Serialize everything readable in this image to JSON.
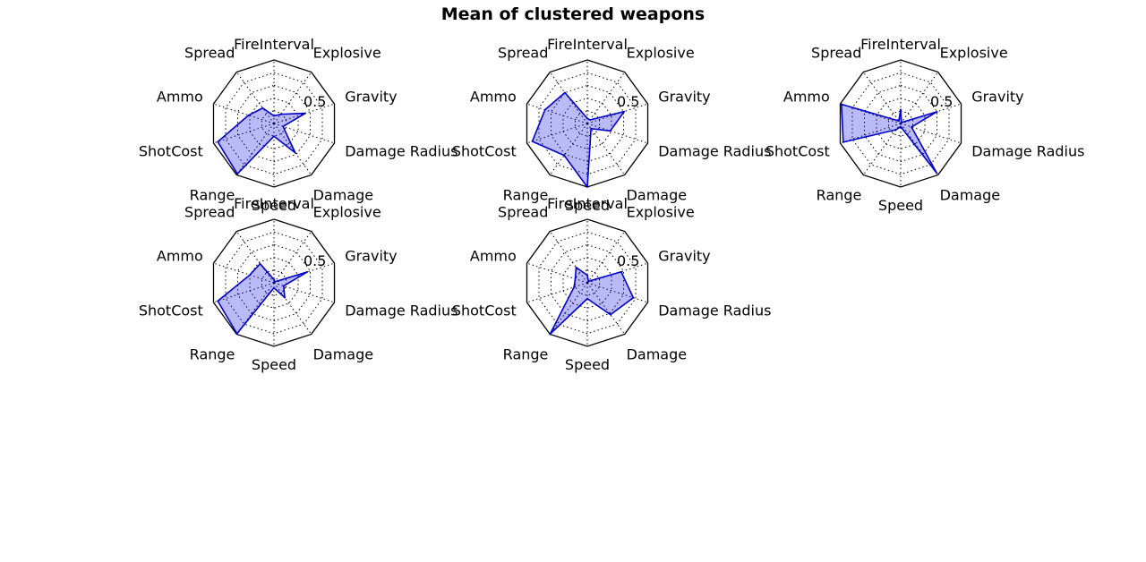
{
  "figure": {
    "title": "Mean of clustered weapons"
  },
  "chart_data": [
    {
      "type": "radar",
      "axes": [
        "FireInterval",
        "Explosive",
        "Gravity",
        "Damage Radius",
        "Damage",
        "Speed",
        "Range",
        "ShotCost",
        "Ammo",
        "Spread"
      ],
      "rtick_label": "0.5",
      "rlim": [
        0,
        1
      ],
      "values": [
        0.12,
        0.18,
        0.52,
        0.15,
        0.57,
        0.2,
        0.98,
        0.93,
        0.42,
        0.3
      ]
    },
    {
      "type": "radar",
      "axes": [
        "FireInterval",
        "Explosive",
        "Gravity",
        "Damage Radius",
        "Damage",
        "Speed",
        "Range",
        "ShotCost",
        "Ammo",
        "Spread"
      ],
      "rtick_label": "0.5",
      "rlim": [
        0,
        1
      ],
      "values": [
        0.08,
        0.07,
        0.61,
        0.38,
        0.1,
        1.0,
        0.62,
        0.91,
        0.7,
        0.6
      ]
    },
    {
      "type": "radar",
      "axes": [
        "FireInterval",
        "Explosive",
        "Gravity",
        "Damage Radius",
        "Damage",
        "Speed",
        "Range",
        "ShotCost",
        "Ammo",
        "Spread"
      ],
      "rtick_label": "0.5",
      "rlim": [
        0,
        1
      ],
      "values": [
        0.22,
        0.02,
        0.6,
        0.18,
        0.97,
        0.05,
        0.12,
        0.95,
        0.98,
        0.05
      ]
    },
    {
      "type": "radar",
      "axes": [
        "FireInterval",
        "Explosive",
        "Gravity",
        "Damage Radius",
        "Damage",
        "Speed",
        "Range",
        "ShotCost",
        "Ammo",
        "Spread"
      ],
      "rtick_label": "0.5",
      "rlim": [
        0,
        1
      ],
      "values": [
        0.05,
        0.02,
        0.55,
        0.16,
        0.29,
        0.08,
        0.99,
        0.93,
        0.4,
        0.37
      ]
    },
    {
      "type": "radar",
      "axes": [
        "FireInterval",
        "Explosive",
        "Gravity",
        "Damage Radius",
        "Damage",
        "Speed",
        "Range",
        "ShotCost",
        "Ammo",
        "Spread"
      ],
      "rtick_label": "0.5",
      "rlim": [
        0,
        1
      ],
      "values": [
        0.12,
        0.03,
        0.56,
        0.76,
        0.62,
        0.25,
        1.0,
        0.22,
        0.2,
        0.3
      ]
    }
  ]
}
